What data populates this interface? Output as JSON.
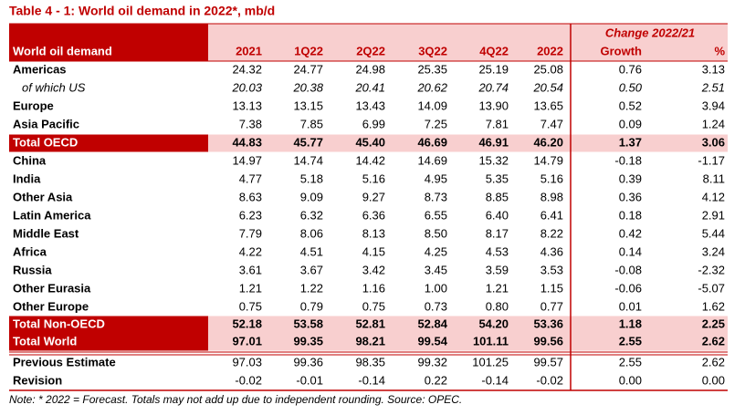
{
  "title": "Table 4 - 1: World oil demand in 2022*, mb/d",
  "header": {
    "change_label": "Change 2022/21",
    "columns": [
      "World oil demand",
      "2021",
      "1Q22",
      "2Q22",
      "3Q22",
      "4Q22",
      "2022",
      "Growth",
      "%"
    ]
  },
  "rows": [
    {
      "label": "Americas",
      "cells": [
        "24.32",
        "24.77",
        "24.98",
        "25.35",
        "25.19",
        "25.08",
        "0.76",
        "3.13"
      ]
    },
    {
      "label": "of which US",
      "cells": [
        "20.03",
        "20.38",
        "20.41",
        "20.62",
        "20.74",
        "20.54",
        "0.50",
        "2.51"
      ]
    },
    {
      "label": "Europe",
      "cells": [
        "13.13",
        "13.15",
        "13.43",
        "14.09",
        "13.90",
        "13.65",
        "0.52",
        "3.94"
      ]
    },
    {
      "label": "Asia Pacific",
      "cells": [
        "7.38",
        "7.85",
        "6.99",
        "7.25",
        "7.81",
        "7.47",
        "0.09",
        "1.24"
      ]
    },
    {
      "label": "Total OECD",
      "cells": [
        "44.83",
        "45.77",
        "45.40",
        "46.69",
        "46.91",
        "46.20",
        "1.37",
        "3.06"
      ]
    },
    {
      "label": "China",
      "cells": [
        "14.97",
        "14.74",
        "14.42",
        "14.69",
        "15.32",
        "14.79",
        "-0.18",
        "-1.17"
      ]
    },
    {
      "label": "India",
      "cells": [
        "4.77",
        "5.18",
        "5.16",
        "4.95",
        "5.35",
        "5.16",
        "0.39",
        "8.11"
      ]
    },
    {
      "label": "Other Asia",
      "cells": [
        "8.63",
        "9.09",
        "9.27",
        "8.73",
        "8.85",
        "8.98",
        "0.36",
        "4.12"
      ]
    },
    {
      "label": "Latin America",
      "cells": [
        "6.23",
        "6.32",
        "6.36",
        "6.55",
        "6.40",
        "6.41",
        "0.18",
        "2.91"
      ]
    },
    {
      "label": "Middle East",
      "cells": [
        "7.79",
        "8.06",
        "8.13",
        "8.50",
        "8.17",
        "8.22",
        "0.42",
        "5.44"
      ]
    },
    {
      "label": "Africa",
      "cells": [
        "4.22",
        "4.51",
        "4.15",
        "4.25",
        "4.53",
        "4.36",
        "0.14",
        "3.24"
      ]
    },
    {
      "label": "Russia",
      "cells": [
        "3.61",
        "3.67",
        "3.42",
        "3.45",
        "3.59",
        "3.53",
        "-0.08",
        "-2.32"
      ]
    },
    {
      "label": "Other Eurasia",
      "cells": [
        "1.21",
        "1.22",
        "1.16",
        "1.00",
        "1.21",
        "1.15",
        "-0.06",
        "-5.07"
      ]
    },
    {
      "label": "Other Europe",
      "cells": [
        "0.75",
        "0.79",
        "0.75",
        "0.73",
        "0.80",
        "0.77",
        "0.01",
        "1.62"
      ]
    },
    {
      "label": "Total Non-OECD",
      "cells": [
        "52.18",
        "53.58",
        "52.81",
        "52.84",
        "54.20",
        "53.36",
        "1.18",
        "2.25"
      ]
    },
    {
      "label": "Total World",
      "cells": [
        "97.01",
        "99.35",
        "98.21",
        "99.54",
        "101.11",
        "99.56",
        "2.55",
        "2.62"
      ]
    },
    {
      "label": "Previous Estimate",
      "cells": [
        "97.03",
        "99.36",
        "98.35",
        "99.32",
        "101.25",
        "99.57",
        "2.55",
        "2.62"
      ]
    },
    {
      "label": "Revision",
      "cells": [
        "-0.02",
        "-0.01",
        "-0.14",
        "0.22",
        "-0.14",
        "-0.02",
        "0.00",
        "0.00"
      ]
    }
  ],
  "note": "Note: * 2022 = Forecast. Totals may not add up due to independent rounding. Source: OPEC."
}
